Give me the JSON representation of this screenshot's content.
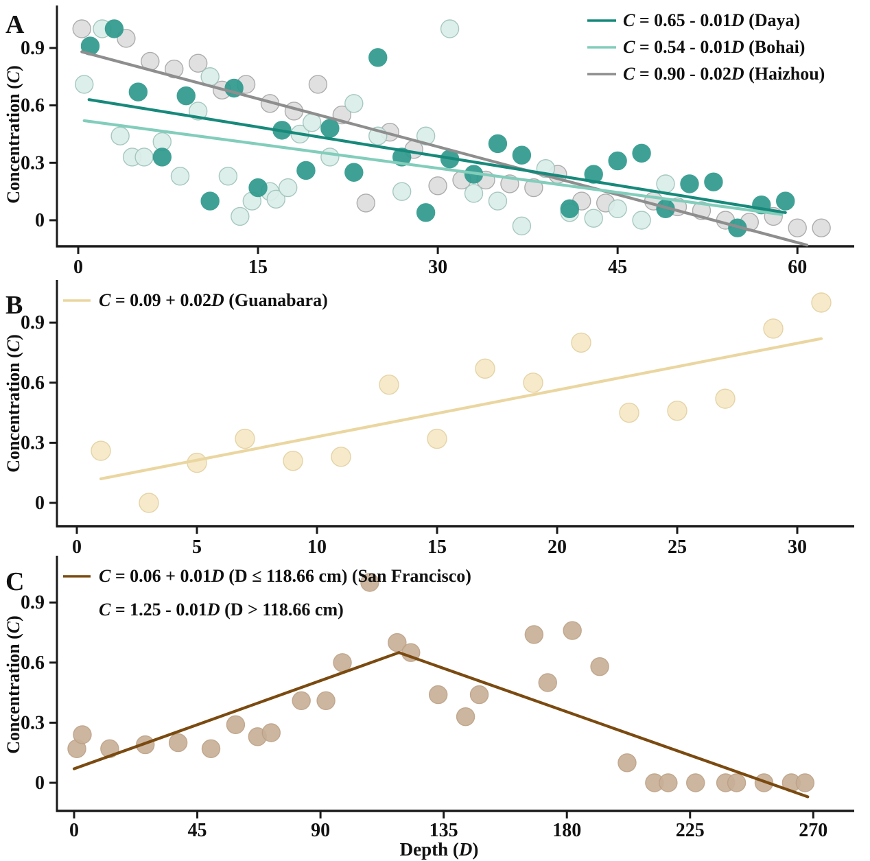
{
  "figure": {
    "background": "#ffffff",
    "axis_color": "#1a1a1a",
    "xlabel_segments": [
      {
        "t": "Depth ("
      },
      {
        "t": "D",
        "i": 1
      },
      {
        "t": ")"
      }
    ],
    "ylabel_segments": [
      {
        "t": "Concentration ("
      },
      {
        "t": "C",
        "i": 1
      },
      {
        "t": ")"
      }
    ]
  },
  "chart_data": [
    {
      "panel": "A",
      "type": "scatter",
      "ylabel": "Concentration (C)",
      "xlabel": "",
      "xlim": [
        -2,
        64.5
      ],
      "ylim": [
        -0.14,
        1.07
      ],
      "grid": false,
      "legend_position": "top-right",
      "x_ticks": [
        {
          "v": 0,
          "label": "0"
        },
        {
          "v": 15,
          "label": "15"
        },
        {
          "v": 30,
          "label": "30"
        },
        {
          "v": 45,
          "label": "45"
        },
        {
          "v": 60,
          "label": "60"
        }
      ],
      "y_ticks": [
        {
          "v": 0,
          "label": "0"
        },
        {
          "v": 0.3,
          "label": "0.3"
        },
        {
          "v": 0.6,
          "label": "0.6"
        },
        {
          "v": 0.9,
          "label": "0.9"
        }
      ],
      "series": [
        {
          "name": "Daya",
          "equation": "C = 0.65 - 0.01D (Daya)",
          "legend_segments": [
            {
              "t": "C",
              "i": 1
            },
            {
              "t": " = 0.65 - 0.01"
            },
            {
              "t": "D",
              "i": 1
            },
            {
              "t": " (Daya)"
            }
          ],
          "point_fill": "#2f9a8d",
          "point_edge": "#2f9a8d",
          "line_color": "#17897b",
          "radius": 13,
          "trend": [
            [
              0.9,
              0.63
            ],
            [
              59,
              0.04
            ]
          ],
          "points": [
            [
              1,
              0.91
            ],
            [
              3,
              1.0
            ],
            [
              5,
              0.67
            ],
            [
              7,
              0.33
            ],
            [
              9,
              0.65
            ],
            [
              11,
              0.1
            ],
            [
              13,
              0.69
            ],
            [
              15,
              0.17
            ],
            [
              17,
              0.47
            ],
            [
              19,
              0.26
            ],
            [
              21,
              0.48
            ],
            [
              23,
              0.25
            ],
            [
              25,
              0.85
            ],
            [
              27,
              0.33
            ],
            [
              29,
              0.04
            ],
            [
              31,
              0.32
            ],
            [
              33,
              0.24
            ],
            [
              35,
              0.4
            ],
            [
              37,
              0.34
            ],
            [
              41,
              0.06
            ],
            [
              43,
              0.24
            ],
            [
              45,
              0.31
            ],
            [
              47,
              0.35
            ],
            [
              49,
              0.06
            ],
            [
              51,
              0.19
            ],
            [
              53,
              0.2
            ],
            [
              55,
              -0.04
            ],
            [
              57,
              0.08
            ],
            [
              59,
              0.1
            ]
          ]
        },
        {
          "name": "Bohai",
          "equation": "C = 0.54 - 0.01D (Bohai)",
          "legend_segments": [
            {
              "t": "C",
              "i": 1
            },
            {
              "t": " = 0.54 - 0.01"
            },
            {
              "t": "D",
              "i": 1
            },
            {
              "t": " (Bohai)"
            }
          ],
          "point_fill": "#dbeee9",
          "point_edge": "#9fc3bb",
          "line_color": "#82cdbb",
          "radius": 13,
          "trend": [
            [
              0.5,
              0.52
            ],
            [
              58.7,
              0.03
            ]
          ],
          "points": [
            [
              0.5,
              0.71
            ],
            [
              2,
              1.0
            ],
            [
              3.5,
              0.44
            ],
            [
              4.5,
              0.33
            ],
            [
              5.5,
              0.33
            ],
            [
              7,
              0.41
            ],
            [
              8.5,
              0.23
            ],
            [
              10,
              0.57
            ],
            [
              11,
              0.75
            ],
            [
              12.5,
              0.23
            ],
            [
              13.5,
              0.02
            ],
            [
              14.5,
              0.1
            ],
            [
              16,
              0.15
            ],
            [
              16.5,
              0.11
            ],
            [
              17.5,
              0.17
            ],
            [
              18.5,
              0.45
            ],
            [
              19.5,
              0.51
            ],
            [
              21,
              0.33
            ],
            [
              23,
              0.61
            ],
            [
              25,
              0.44
            ],
            [
              27,
              0.15
            ],
            [
              29,
              0.44
            ],
            [
              31,
              1.0
            ],
            [
              33,
              0.14
            ],
            [
              35,
              0.1
            ],
            [
              37,
              -0.03
            ],
            [
              39,
              0.27
            ],
            [
              41,
              0.04
            ],
            [
              43,
              0.01
            ],
            [
              45,
              0.06
            ],
            [
              47,
              0.0
            ],
            [
              49,
              0.19
            ]
          ]
        },
        {
          "name": "Haizhou",
          "equation": "C = 0.90 - 0.02D (Haizhou)",
          "legend_segments": [
            {
              "t": "C",
              "i": 1
            },
            {
              "t": " = 0.90 - 0.02"
            },
            {
              "t": "D",
              "i": 1
            },
            {
              "t": " (Haizhou)"
            }
          ],
          "point_fill": "#dededf",
          "point_edge": "#a6a6a7",
          "line_color": "#8e8e8e",
          "radius": 13,
          "trend": [
            [
              0.3,
              0.88
            ],
            [
              60.8,
              -0.13
            ]
          ],
          "points": [
            [
              0.3,
              1.0
            ],
            [
              4,
              0.95
            ],
            [
              6,
              0.83
            ],
            [
              8,
              0.79
            ],
            [
              10,
              0.82
            ],
            [
              12,
              0.68
            ],
            [
              14,
              0.71
            ],
            [
              16,
              0.61
            ],
            [
              18,
              0.57
            ],
            [
              20,
              0.71
            ],
            [
              22,
              0.55
            ],
            [
              24,
              0.09
            ],
            [
              26,
              0.46
            ],
            [
              28,
              0.37
            ],
            [
              30,
              0.18
            ],
            [
              32,
              0.21
            ],
            [
              34,
              0.21
            ],
            [
              36,
              0.19
            ],
            [
              38,
              0.17
            ],
            [
              40,
              0.24
            ],
            [
              42,
              0.1
            ],
            [
              44,
              0.09
            ],
            [
              48,
              0.1
            ],
            [
              50,
              0.07
            ],
            [
              52,
              0.05
            ],
            [
              54,
              0.0
            ],
            [
              56,
              -0.01
            ],
            [
              58,
              0.02
            ],
            [
              60,
              -0.04
            ],
            [
              62,
              -0.04
            ]
          ]
        }
      ]
    },
    {
      "panel": "B",
      "type": "scatter",
      "ylabel": "Concentration (C)",
      "xlabel": "",
      "xlim": [
        -1,
        32.5
      ],
      "ylim": [
        -0.12,
        1.1
      ],
      "grid": false,
      "legend_position": "top-left",
      "x_ticks": [
        {
          "v": 0,
          "label": "0"
        },
        {
          "v": 5,
          "label": "5"
        },
        {
          "v": 10,
          "label": "10"
        },
        {
          "v": 15,
          "label": "15"
        },
        {
          "v": 20,
          "label": "20"
        },
        {
          "v": 25,
          "label": "25"
        },
        {
          "v": 30,
          "label": "30"
        }
      ],
      "y_ticks": [
        {
          "v": 0,
          "label": "0"
        },
        {
          "v": 0.3,
          "label": "0.3"
        },
        {
          "v": 0.6,
          "label": "0.6"
        },
        {
          "v": 0.9,
          "label": "0.9"
        }
      ],
      "series": [
        {
          "name": "Guanabara",
          "equation": "C = 0.09 + 0.02D (Guanabara)",
          "legend_segments": [
            {
              "t": "C",
              "i": 1
            },
            {
              "t": " = 0.09 + 0.02"
            },
            {
              "t": "D",
              "i": 1
            },
            {
              "t": " (Guanabara)"
            }
          ],
          "point_fill": "#f6e9c6",
          "point_edge": "#e3d0a0",
          "line_color": "#ead6a0",
          "radius": 14,
          "trend": [
            [
              1,
              0.12
            ],
            [
              31,
              0.82
            ]
          ],
          "points": [
            [
              1,
              0.26
            ],
            [
              3,
              0.0
            ],
            [
              5,
              0.2
            ],
            [
              7,
              0.32
            ],
            [
              9,
              0.21
            ],
            [
              11,
              0.23
            ],
            [
              13,
              0.59
            ],
            [
              15,
              0.32
            ],
            [
              17,
              0.67
            ],
            [
              19,
              0.6
            ],
            [
              21,
              0.8
            ],
            [
              23,
              0.45
            ],
            [
              25,
              0.46
            ],
            [
              27,
              0.52
            ],
            [
              29,
              0.87
            ],
            [
              31,
              1.0
            ]
          ]
        }
      ]
    },
    {
      "panel": "C",
      "type": "scatter",
      "ylabel": "Concentration (C)",
      "xlabel": "Depth (D)",
      "xlim": [
        -5,
        285
      ],
      "ylim": [
        -0.14,
        1.08
      ],
      "grid": false,
      "legend_position": "top-left",
      "x_ticks": [
        {
          "v": 0,
          "label": "0"
        },
        {
          "v": 45,
          "label": "45"
        },
        {
          "v": 90,
          "label": "90"
        },
        {
          "v": 135,
          "label": "135"
        },
        {
          "v": 180,
          "label": "180"
        },
        {
          "v": 225,
          "label": "225"
        },
        {
          "v": 270,
          "label": "270"
        }
      ],
      "y_ticks": [
        {
          "v": 0,
          "label": "0"
        },
        {
          "v": 0.3,
          "label": "0.3"
        },
        {
          "v": 0.6,
          "label": "0.6"
        },
        {
          "v": 0.9,
          "label": "0.9"
        }
      ],
      "series": [
        {
          "name": "San Francisco",
          "equation": "C = 0.06 + 0.01D (D ≤ 118.66 cm) (San Francisco) ; C = 1.25 - 0.01D (D > 118.66 cm)",
          "legend_segments": [
            {
              "t": "C",
              "i": 1
            },
            {
              "t": " = 0.06 + 0.01"
            },
            {
              "t": "D",
              "i": 1
            },
            {
              "t": " (D ≤ 118.66 cm) (San Francisco)"
            }
          ],
          "legend_segments_2": [
            {
              "t": "C",
              "i": 1
            },
            {
              "t": " = 1.25 - 0.01"
            },
            {
              "t": "D",
              "i": 1
            },
            {
              "t": " (D > 118.66 cm)"
            }
          ],
          "point_fill": "#c8b098",
          "point_edge": "#bca084",
          "line_color": "#7a4a10",
          "radius": 13,
          "breakpoint": 118.66,
          "trend": [
            [
              0,
              0.07
            ],
            [
              118.66,
              0.65
            ],
            [
              268,
              -0.07
            ]
          ],
          "points": [
            [
              1,
              0.17
            ],
            [
              3,
              0.24
            ],
            [
              13,
              0.17
            ],
            [
              26,
              0.19
            ],
            [
              38,
              0.2
            ],
            [
              50,
              0.17
            ],
            [
              59,
              0.29
            ],
            [
              67,
              0.23
            ],
            [
              72,
              0.25
            ],
            [
              83,
              0.41
            ],
            [
              92,
              0.41
            ],
            [
              98,
              0.6
            ],
            [
              108,
              1.0
            ],
            [
              118,
              0.7
            ],
            [
              123,
              0.65
            ],
            [
              133,
              0.44
            ],
            [
              143,
              0.33
            ],
            [
              148,
              0.44
            ],
            [
              168,
              0.74
            ],
            [
              173,
              0.5
            ],
            [
              182,
              0.76
            ],
            [
              192,
              0.58
            ],
            [
              202,
              0.1
            ],
            [
              212,
              0.0
            ],
            [
              217,
              0.0
            ],
            [
              227,
              0.0
            ],
            [
              238,
              0.0
            ],
            [
              242,
              0.0
            ],
            [
              252,
              0.0
            ],
            [
              262,
              0.0
            ],
            [
              267,
              0.0
            ]
          ]
        }
      ]
    }
  ]
}
